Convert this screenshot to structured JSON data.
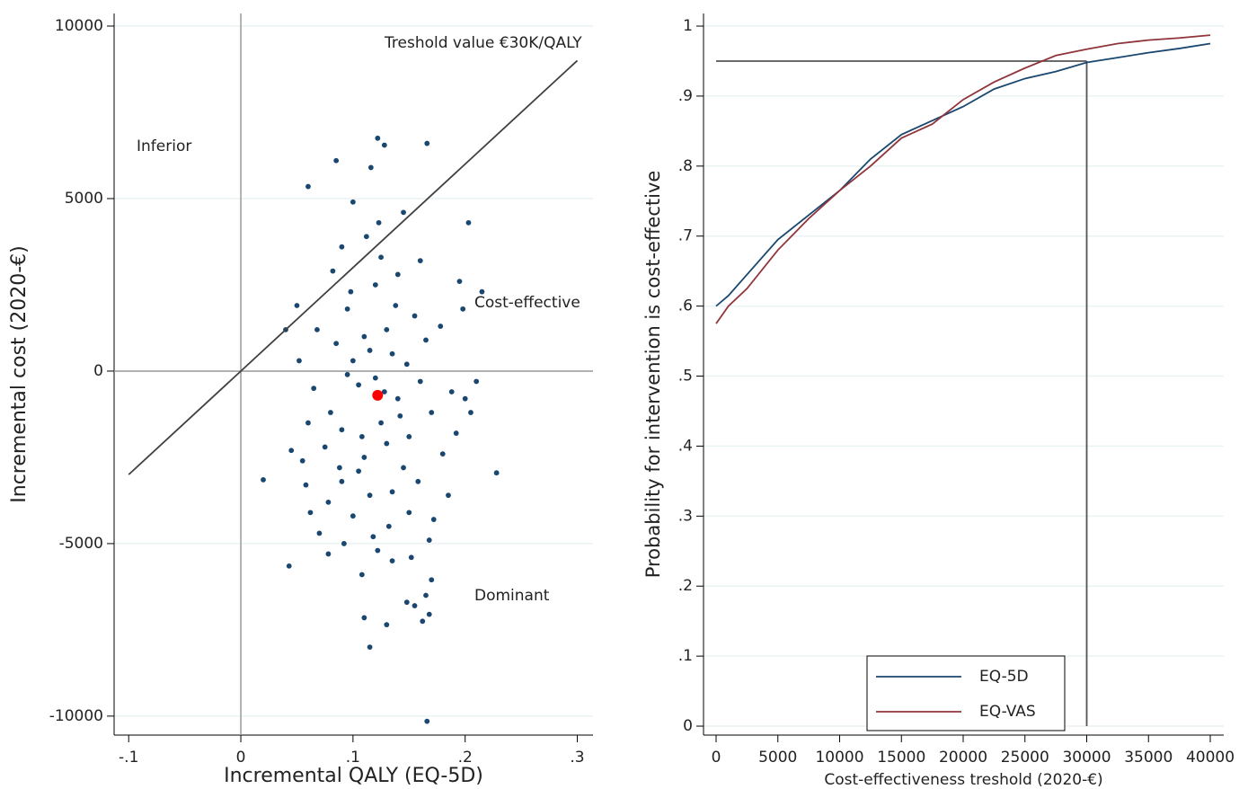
{
  "chart_data": [
    {
      "type": "scatter",
      "xlabel": "Incremental QALY (EQ-5D)",
      "ylabel": "Incremental cost (2020-€)",
      "xlim": [
        -0.113,
        0.314
      ],
      "ylim": [
        -10550,
        10365
      ],
      "xticks": [
        {
          "value": -0.1,
          "label": "-.1"
        },
        0,
        {
          "value": 0.1,
          "label": ".1"
        },
        {
          "value": 0.2,
          "label": ".2"
        },
        {
          "value": 0.3,
          "label": ".3"
        }
      ],
      "yticks": [
        10000,
        5000,
        0,
        -5000,
        -10000
      ],
      "grid": true,
      "reference_lines": {
        "x": 0,
        "y": 0
      },
      "annotations": [
        "Treshold value €30K/QALY",
        "Inferior",
        "Cost-effective",
        "Dominant"
      ],
      "series": [
        {
          "type": "scatter",
          "color": "#1a476f",
          "x": [
            0.08,
            0.1,
            0.11,
            0.13,
            0.14,
            0.09,
            0.12,
            0.15,
            0.105,
            0.125,
            0.135,
            0.095,
            0.16,
            0.075,
            0.115,
            0.145,
            0.085,
            0.17,
            0.065,
            0.155,
            0.1,
            0.12,
            0.13,
            0.11,
            0.14,
            0.09,
            0.18,
            0.06,
            0.125,
            0.15,
            0.105,
            0.135,
            0.095,
            0.115,
            0.165,
            0.078,
            0.188,
            0.055,
            0.142,
            0.118,
            0.098,
            0.128,
            0.108,
            0.148,
            0.088,
            0.138,
            0.158,
            0.068,
            0.178,
            0.122,
            0.112,
            0.132,
            0.092,
            0.152,
            0.082,
            0.172,
            0.062,
            0.192,
            0.045,
            0.2,
            0.05,
            0.195,
            0.04,
            0.185,
            0.07,
            0.16,
            0.09,
            0.145,
            0.1,
            0.116,
            0.123,
            0.108,
            0.135,
            0.078,
            0.168,
            0.058,
            0.205,
            0.198,
            0.052,
            0.21,
            0.166,
            0.122,
            0.128,
            0.085,
            0.166,
            0.115,
            0.13,
            0.11,
            0.162,
            0.168,
            0.228,
            0.02,
            0.043,
            0.203,
            0.215,
            0.06,
            0.148,
            0.155,
            0.17,
            0.165
          ],
          "values": [
            -1200,
            300,
            -2500,
            1200,
            -800,
            -3200,
            2500,
            -1900,
            -400,
            -1500,
            500,
            1800,
            -300,
            -2200,
            -3600,
            -2800,
            800,
            -1200,
            -500,
            1600,
            -4200,
            -200,
            -2100,
            1000,
            2800,
            -1700,
            -2400,
            -1500,
            3300,
            -4100,
            -2900,
            -3500,
            -100,
            600,
            900,
            -3800,
            -600,
            -2600,
            -1300,
            -4800,
            2300,
            -600,
            -1900,
            200,
            -2800,
            1900,
            -3200,
            1200,
            1300,
            -5200,
            3900,
            -4500,
            -5000,
            -5400,
            2900,
            -4300,
            -4100,
            -1800,
            -2300,
            -800,
            1900,
            2600,
            1200,
            -3600,
            -4700,
            3200,
            3600,
            4600,
            4900,
            5900,
            4300,
            -5900,
            -5500,
            -5300,
            -4900,
            -3300,
            -1200,
            1800,
            300,
            -300,
            6600,
            6750,
            6550,
            6100,
            -10150,
            -8000,
            -7350,
            -7150,
            -7250,
            -7050,
            -2950,
            -3150,
            -5650,
            4300,
            2300,
            5350,
            -6700,
            -6800,
            -6050,
            -6500
          ]
        },
        {
          "type": "line",
          "color": "#404040",
          "x": [
            -0.1,
            0.3
          ],
          "values": [
            -3000,
            9000
          ]
        },
        {
          "type": "scatter",
          "color": "#ff0000",
          "x": [
            0.122
          ],
          "values": [
            -700
          ]
        }
      ]
    },
    {
      "type": "line",
      "xlabel": "Cost-effectiveness treshold (2020-€)",
      "ylabel": "Probability for intervention is cost-effective",
      "xlim": [
        -1018,
        41091
      ],
      "ylim": [
        -0.0128,
        1.018
      ],
      "xticks": [
        0,
        5000,
        10000,
        15000,
        20000,
        25000,
        30000,
        35000,
        40000
      ],
      "yticks": [
        0,
        {
          "value": 0.1,
          "label": ".1"
        },
        {
          "value": 0.2,
          "label": ".2"
        },
        {
          "value": 0.3,
          "label": ".3"
        },
        {
          "value": 0.4,
          "label": ".4"
        },
        {
          "value": 0.5,
          "label": ".5"
        },
        {
          "value": 0.6,
          "label": ".6"
        },
        {
          "value": 0.7,
          "label": ".7"
        },
        {
          "value": 0.8,
          "label": ".8"
        },
        {
          "value": 0.9,
          "label": ".9"
        },
        1
      ],
      "grid": true,
      "legend": "bottom",
      "guide": {
        "x": 30000,
        "y": 0.95
      },
      "x": [
        0,
        1000,
        2500,
        5000,
        7500,
        10000,
        12500,
        15000,
        17500,
        20000,
        22500,
        25000,
        27500,
        30000,
        32500,
        35000,
        37500,
        40000
      ],
      "series": [
        {
          "name": "EQ-5D",
          "color": "#1a476f",
          "values": [
            0.6,
            0.615,
            0.645,
            0.695,
            0.73,
            0.765,
            0.81,
            0.845,
            0.865,
            0.885,
            0.91,
            0.925,
            0.935,
            0.948,
            0.955,
            0.962,
            0.968,
            0.975
          ]
        },
        {
          "name": "EQ-VAS",
          "color": "#90353b",
          "values": [
            0.575,
            0.6,
            0.625,
            0.68,
            0.725,
            0.765,
            0.8,
            0.84,
            0.86,
            0.895,
            0.92,
            0.94,
            0.958,
            0.967,
            0.975,
            0.98,
            0.983,
            0.987
          ]
        }
      ]
    }
  ]
}
